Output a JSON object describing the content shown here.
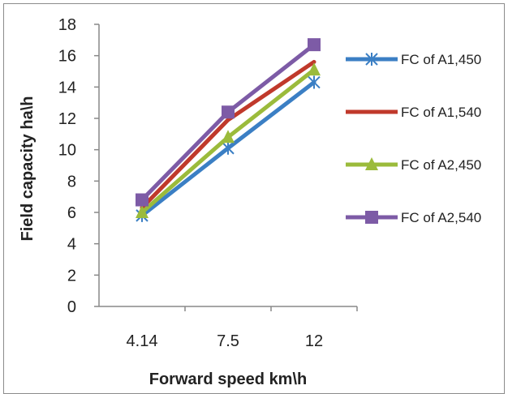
{
  "chart_data": {
    "type": "line",
    "categories": [
      "4.14",
      "7.5",
      "12"
    ],
    "series": [
      {
        "name": "FC of A1,450",
        "values": [
          5.8,
          10.1,
          14.3
        ],
        "color": "#3b7fc4",
        "marker": "star"
      },
      {
        "name": "FC of A1,540",
        "values": [
          6.3,
          11.9,
          15.6
        ],
        "color": "#c0392b",
        "marker": "none"
      },
      {
        "name": "FC of A2,450",
        "values": [
          6.0,
          10.8,
          15.1
        ],
        "color": "#9bbb3b",
        "marker": "triangle"
      },
      {
        "name": "FC of A2,540",
        "values": [
          6.8,
          12.4,
          16.7
        ],
        "color": "#7d5ba6",
        "marker": "square"
      }
    ],
    "xlabel": "Forward speed km\\h",
    "ylabel": "Field capacity  ha\\h",
    "ylim": [
      0,
      18
    ],
    "yticks": [
      0,
      2,
      4,
      6,
      8,
      10,
      12,
      14,
      16,
      18
    ],
    "grid": false,
    "legend": "right"
  }
}
